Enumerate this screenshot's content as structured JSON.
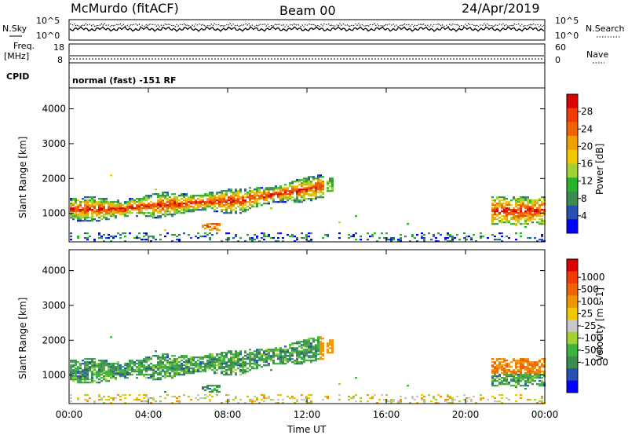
{
  "header": {
    "station": "McMurdo (fitACF)",
    "beam": "Beam 00",
    "date": "24/Apr/2019"
  },
  "status_panels": {
    "nsky_label": "N.Sky",
    "nsearch_label": "N.Search",
    "noise_ticks": [
      "10^5",
      "10^0"
    ],
    "freq_label": "Freq.",
    "freq_unit": "[MHz]",
    "freq_ticks": [
      "18",
      "8"
    ],
    "nave_label": "Nave",
    "nave_ticks": [
      "60",
      "0"
    ],
    "cpid_label": "CPID",
    "cpid_value": "normal (fast) -151 RF"
  },
  "colors": {
    "power_scale": [
      "#0000ff",
      "#2850b0",
      "#3c8c50",
      "#28b428",
      "#a0d232",
      "#f0c800",
      "#f0a000",
      "#f06400",
      "#f03c00",
      "#dc0000"
    ],
    "velocity_scale": [
      "#0000ff",
      "#2850b0",
      "#3c8c50",
      "#3cb43c",
      "#a0d232",
      "#c8c8c8",
      "#f0c800",
      "#f09600",
      "#f06400",
      "#f03c00",
      "#dc0000"
    ]
  },
  "chart_data": [
    {
      "type": "heatmap",
      "name": "power",
      "ylabel": "Slant Range [km]",
      "ylim": [
        180,
        4600
      ],
      "yticks": [
        "1000",
        "2000",
        "3000",
        "4000"
      ],
      "colorbar_label": "Power [dB]",
      "colorbar_ticks": [
        "4",
        "8",
        "12",
        "16",
        "20",
        "24",
        "28"
      ],
      "colorbar_range": [
        0,
        32
      ]
    },
    {
      "type": "heatmap",
      "name": "velocity",
      "ylabel": "Slant Range [km]",
      "ylim": [
        180,
        4600
      ],
      "yticks": [
        "1000",
        "2000",
        "3000",
        "4000"
      ],
      "colorbar_label": "Velocity [m s-1]",
      "colorbar_ticks": [
        "1000",
        "500",
        "100",
        "25",
        "-25",
        "-100",
        "-500",
        "-1000"
      ]
    }
  ],
  "x_axis": {
    "label": "Time UT",
    "ticks": [
      "00:00",
      "04:00",
      "08:00",
      "12:00",
      "16:00",
      "20:00",
      "00:00"
    ],
    "range_hours": [
      0,
      24
    ]
  }
}
